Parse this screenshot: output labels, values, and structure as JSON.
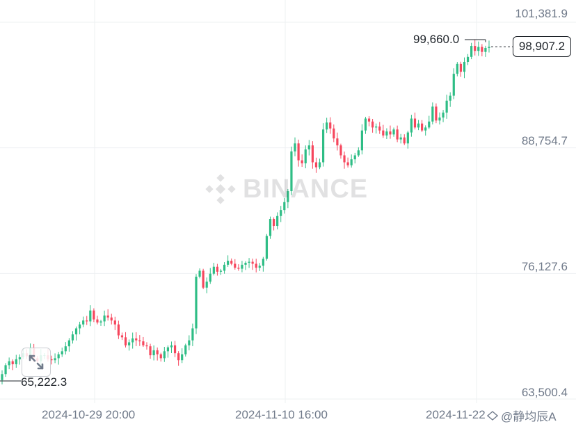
{
  "watermark": {
    "text": "BINANCE"
  },
  "price_axis": {
    "labels": [
      "101,381.9",
      "88,754.7",
      "76,127.6",
      "63,500.4"
    ]
  },
  "time_axis": {
    "labels": [
      "2024-10-29 20:00",
      "2024-11-10 16:00",
      "2024-11-22"
    ]
  },
  "annotations": {
    "high_label": "99,660.0",
    "low_label": "65,222.3",
    "current_price": "98,907.2"
  },
  "author": {
    "name": "@静均辰A",
    "icon": "share-icon"
  },
  "controls": {
    "expand_icon": "expand-arrows-icon"
  },
  "colors": {
    "up": "#2ebd85",
    "down": "#f6465d",
    "grid": "#eef0f2",
    "axis_text": "#707a8a"
  },
  "chart_data": {
    "type": "candlestick",
    "grid": true,
    "ylim": [
      63500.4,
      101381.9
    ],
    "yticks": [
      101381.9,
      88754.7,
      76127.6,
      63500.4
    ],
    "xticks": [
      "2024-10-29 20:00",
      "2024-11-10 16:00",
      "2024-11-22"
    ],
    "marked_high": 99660.0,
    "marked_low": 65222.3,
    "last_price": 98907.2,
    "close_path": [
      66000,
      66900,
      67300,
      67000,
      67500,
      67700,
      68100,
      67800,
      68600,
      67600,
      67300,
      67900,
      67900,
      67500,
      67400,
      67600,
      68000,
      68300,
      68800,
      69400,
      70000,
      70600,
      71000,
      71400,
      71300,
      72400,
      71500,
      71200,
      71300,
      71900,
      71700,
      71400,
      71000,
      69900,
      69700,
      68900,
      69200,
      69600,
      69400,
      69300,
      68900,
      68800,
      67900,
      68400,
      68000,
      67600,
      68300,
      68700,
      68900,
      68100,
      67400,
      68000,
      68900,
      69400,
      70600,
      75800,
      76400,
      74700,
      75300,
      76100,
      76800,
      76300,
      76400,
      77000,
      77400,
      77100,
      76700,
      76600,
      77000,
      77200,
      77300,
      77100,
      76700,
      76900,
      77600,
      79900,
      81600,
      80900,
      81900,
      82500,
      83300,
      84400,
      88400,
      89200,
      87500,
      87200,
      88600,
      89000,
      87300,
      86800,
      87300,
      90600,
      91300,
      90700,
      89700,
      89000,
      88000,
      87300,
      87000,
      87600,
      88000,
      88500,
      90500,
      91700,
      91400,
      90800,
      90900,
      90500,
      90000,
      90400,
      90100,
      90600,
      89600,
      89800,
      89200,
      90300,
      91700,
      90800,
      91200,
      90500,
      90800,
      91400,
      92900,
      91500,
      91800,
      92300,
      93500,
      94000,
      96200,
      97200,
      96400,
      97400,
      97900,
      99000,
      98500,
      98900,
      98400,
      98800,
      98907.2
    ]
  }
}
